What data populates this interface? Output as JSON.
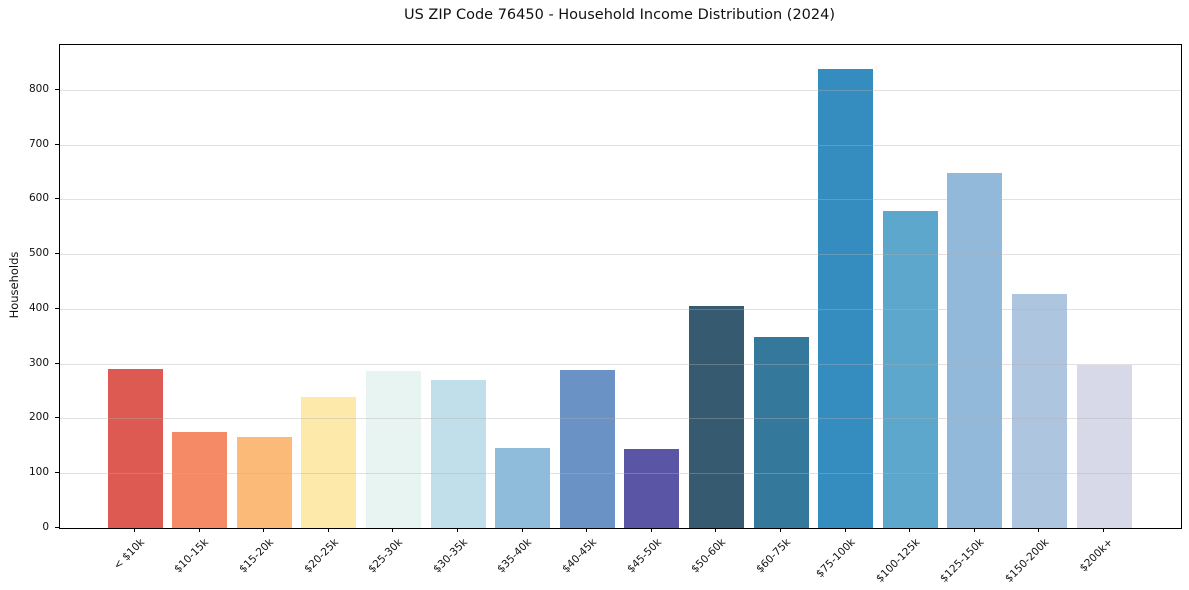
{
  "chart_data": {
    "type": "bar",
    "title": "US ZIP Code 76450 - Household Income Distribution (2024)",
    "xlabel": "",
    "ylabel": "Households",
    "categories": [
      "< $10k",
      "$10-15k",
      "$15-20k",
      "$20-25k",
      "$25-30k",
      "$30-35k",
      "$35-40k",
      "$40-45k",
      "$45-50k",
      "$50-60k",
      "$60-75k",
      "$75-100k",
      "$100-125k",
      "$125-150k",
      "$150-200k",
      "$200k+"
    ],
    "values": [
      290,
      176,
      166,
      240,
      287,
      270,
      146,
      288,
      145,
      405,
      348,
      838,
      578,
      649,
      428,
      297
    ],
    "bar_colors": [
      "#dc5a52",
      "#f58a66",
      "#fcba79",
      "#fde9a9",
      "#e8f4f2",
      "#c1dfeb",
      "#90bcdb",
      "#6a92c5",
      "#5a56a5",
      "#365a70",
      "#34799c",
      "#358cbf",
      "#5da7cc",
      "#92b9da",
      "#aec5e0",
      "#d7d9e8"
    ],
    "yticks": [
      0,
      100,
      200,
      300,
      400,
      500,
      600,
      700,
      800
    ],
    "ylim": [
      0,
      882
    ],
    "grid": "horizontal",
    "legend": "none",
    "background": "#ffffff",
    "spine_color": "#000000",
    "gridline_color": "#e2e2e2"
  }
}
